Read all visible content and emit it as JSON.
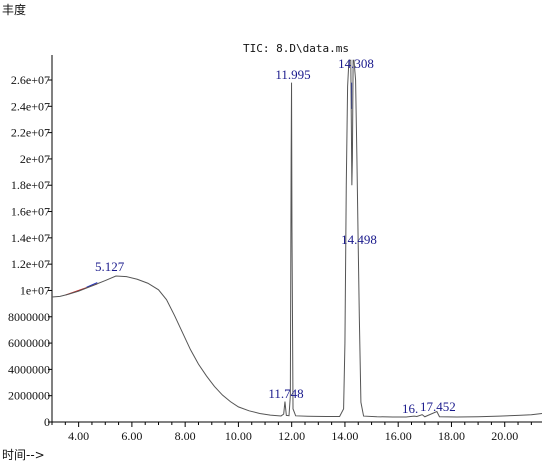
{
  "chart_data": {
    "type": "line",
    "title": "TIC: 8.D\\data.ms",
    "ylabel": "丰度",
    "xlabel": "时间-->",
    "xlim": [
      3.0,
      21.4
    ],
    "ylim": [
      0,
      28000000
    ],
    "x_ticks": [
      {
        "value": 4.0,
        "label": "4.00"
      },
      {
        "value": 6.0,
        "label": "6.00"
      },
      {
        "value": 8.0,
        "label": "8.00"
      },
      {
        "value": 10.0,
        "label": "10.00"
      },
      {
        "value": 12.0,
        "label": "12.00"
      },
      {
        "value": 14.0,
        "label": "14.00"
      },
      {
        "value": 16.0,
        "label": "16.00"
      },
      {
        "value": 18.0,
        "label": "18.00"
      },
      {
        "value": 20.0,
        "label": "20.00"
      }
    ],
    "y_ticks": [
      {
        "value": 0,
        "label": "0"
      },
      {
        "value": 2000000,
        "label": "2000000"
      },
      {
        "value": 4000000,
        "label": "4000000"
      },
      {
        "value": 6000000,
        "label": "6000000"
      },
      {
        "value": 8000000,
        "label": "8000000"
      },
      {
        "value": 10000000,
        "label": "1e+07"
      },
      {
        "value": 12000000,
        "label": "1.2e+07"
      },
      {
        "value": 14000000,
        "label": "1.4e+07"
      },
      {
        "value": 16000000,
        "label": "1.6e+07"
      },
      {
        "value": 18000000,
        "label": "1.8e+07"
      },
      {
        "value": 20000000,
        "label": "2e+07"
      },
      {
        "value": 22000000,
        "label": "2.2e+07"
      },
      {
        "value": 24000000,
        "label": "2.4e+07"
      },
      {
        "value": 26000000,
        "label": "2.6e+07"
      }
    ],
    "series": [
      {
        "color": "#555555",
        "points": [
          [
            3.0,
            9500000
          ],
          [
            3.3,
            9550000
          ],
          [
            3.6,
            9700000
          ],
          [
            4.0,
            9950000
          ],
          [
            4.5,
            10350000
          ],
          [
            5.0,
            10750000
          ],
          [
            5.4,
            11100000
          ],
          [
            5.8,
            11050000
          ],
          [
            6.2,
            10850000
          ],
          [
            6.6,
            10550000
          ],
          [
            7.0,
            10050000
          ],
          [
            7.3,
            9300000
          ],
          [
            7.6,
            8100000
          ],
          [
            7.9,
            6800000
          ],
          [
            8.2,
            5500000
          ],
          [
            8.5,
            4400000
          ],
          [
            8.8,
            3500000
          ],
          [
            9.1,
            2700000
          ],
          [
            9.4,
            2050000
          ],
          [
            9.7,
            1550000
          ],
          [
            10.0,
            1150000
          ],
          [
            10.4,
            850000
          ],
          [
            10.8,
            650000
          ],
          [
            11.2,
            520000
          ],
          [
            11.6,
            460000
          ],
          [
            11.7,
            600000
          ],
          [
            11.748,
            1550000
          ],
          [
            11.8,
            500000
          ],
          [
            11.9,
            480000
          ],
          [
            11.95,
            2000000
          ],
          [
            11.98,
            20000000
          ],
          [
            11.995,
            25800000
          ],
          [
            12.01,
            15000000
          ],
          [
            12.05,
            1000000
          ],
          [
            12.15,
            470000
          ],
          [
            12.6,
            440000
          ],
          [
            12.9,
            430000
          ],
          [
            13.3,
            420000
          ],
          [
            13.8,
            420000
          ],
          [
            13.95,
            1000000
          ],
          [
            14.0,
            6000000
          ],
          [
            14.05,
            18000000
          ],
          [
            14.1,
            25500000
          ],
          [
            14.15,
            27500000
          ],
          [
            14.22,
            27500000
          ],
          [
            14.26,
            18000000
          ],
          [
            14.28,
            20000000
          ],
          [
            14.308,
            27500000
          ],
          [
            14.34,
            27500000
          ],
          [
            14.4,
            26000000
          ],
          [
            14.45,
            20000000
          ],
          [
            14.498,
            13500000
          ],
          [
            14.54,
            8000000
          ],
          [
            14.6,
            1500000
          ],
          [
            14.7,
            450000
          ],
          [
            15.2,
            400000
          ],
          [
            15.8,
            380000
          ],
          [
            16.3,
            380000
          ],
          [
            16.6,
            450000
          ],
          [
            16.7,
            420000
          ],
          [
            16.9,
            560000
          ],
          [
            17.0,
            400000
          ],
          [
            17.452,
            800000
          ],
          [
            17.55,
            400000
          ],
          [
            18.2,
            380000
          ],
          [
            19.0,
            400000
          ],
          [
            19.8,
            450000
          ],
          [
            20.5,
            500000
          ],
          [
            21.0,
            550000
          ],
          [
            21.4,
            650000
          ]
        ]
      }
    ],
    "peaks": [
      {
        "x": 5.127,
        "label": "5.127"
      },
      {
        "x": 11.748,
        "label": "11.748"
      },
      {
        "x": 11.995,
        "label": "11.995"
      },
      {
        "x": 14.308,
        "label": "14.308"
      },
      {
        "x": 14.498,
        "label": "14.498"
      },
      {
        "x": 16.9,
        "label": "16."
      },
      {
        "x": 17.452,
        "label": "17.452"
      }
    ]
  }
}
